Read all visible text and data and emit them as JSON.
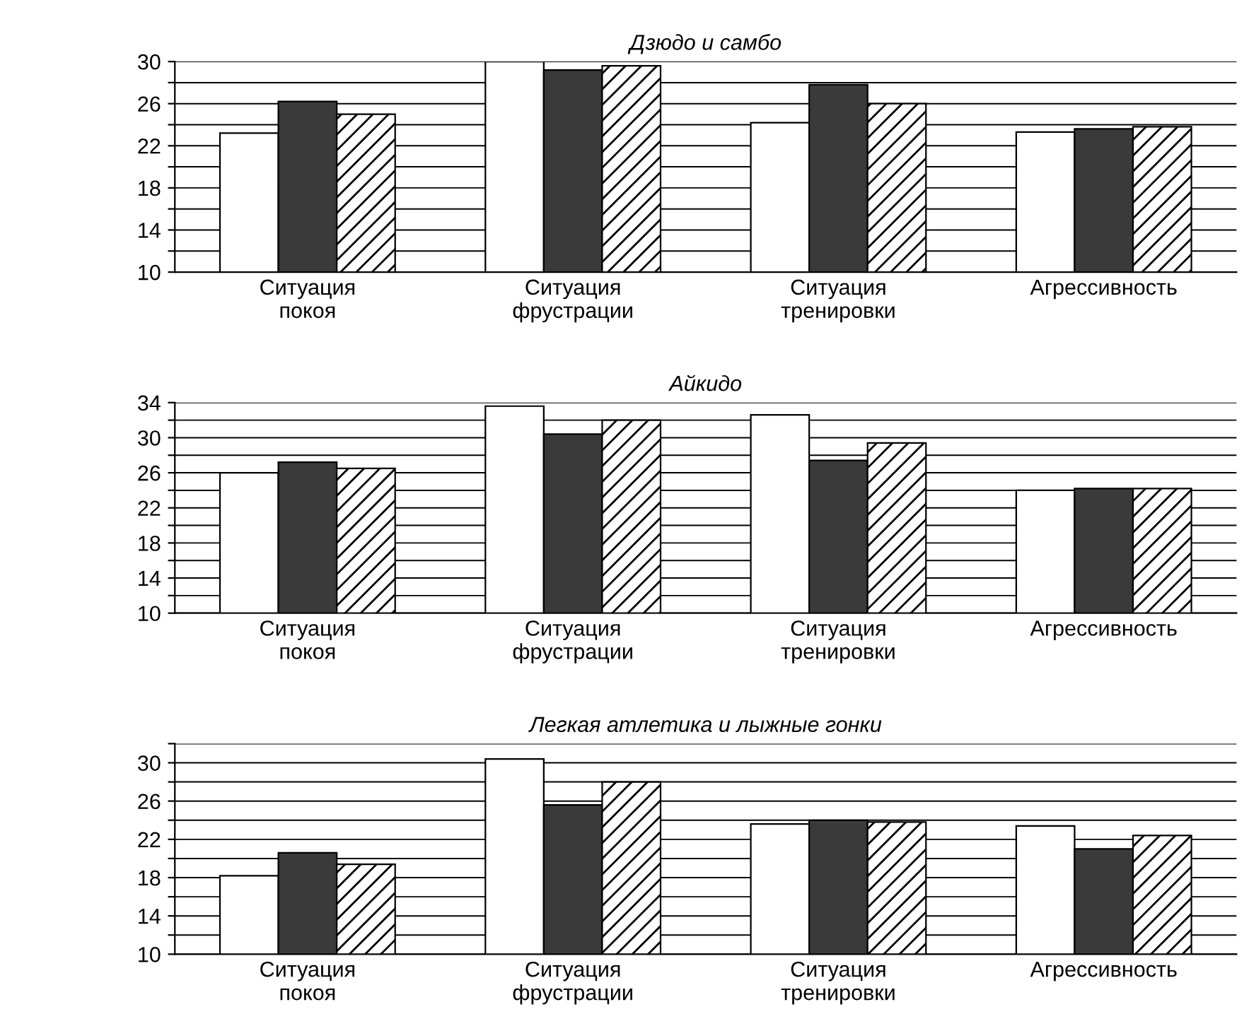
{
  "chart_data": [
    {
      "type": "bar",
      "title": "Дзюдо и самбо",
      "categories": [
        "Ситуация\nпокоя",
        "Ситуация\nфрустрации",
        "Ситуация\nтренировки",
        "Агрессивность"
      ],
      "series": [
        {
          "color": "#ffffff",
          "values": [
            23.2,
            30,
            24.2,
            23.3
          ]
        },
        {
          "color": "#3a3a3a",
          "values": [
            26.2,
            29.2,
            27.8,
            23.6
          ]
        },
        {
          "color": "#000000",
          "values": [
            25,
            29.6,
            26,
            23.8
          ]
        }
      ],
      "ylim": [
        10,
        30
      ],
      "yticks": [
        10,
        {
          "value": 12,
          "label": null
        },
        14,
        {
          "value": 16,
          "label": null
        },
        18,
        {
          "value": 20,
          "label": null
        },
        22,
        {
          "value": 24,
          "label": null
        },
        26,
        {
          "value": 28,
          "label": null
        },
        30
      ],
      "grid": "y",
      "legend": false
    },
    {
      "type": "bar",
      "title": "Айкидо",
      "categories": [
        "Ситуация\nпокоя",
        "Ситуация\nфрустрации",
        "Ситуация\nтренировки",
        "Агрессивность"
      ],
      "series": [
        {
          "color": "#ffffff",
          "values": [
            26,
            33.6,
            32.6,
            24
          ]
        },
        {
          "color": "#3a3a3a",
          "values": [
            27.2,
            30.4,
            27.4,
            24.2
          ]
        },
        {
          "color": "#000000",
          "values": [
            26.5,
            32,
            29.4,
            24.2
          ]
        }
      ],
      "ylim": [
        10,
        34
      ],
      "yticks": [
        10,
        {
          "value": 12,
          "label": null
        },
        14,
        {
          "value": 16,
          "label": null
        },
        18,
        {
          "value": 20,
          "label": null
        },
        22,
        {
          "value": 24,
          "label": null
        },
        26,
        {
          "value": 28,
          "label": null
        },
        30,
        {
          "value": 32,
          "label": null
        },
        34
      ],
      "grid": "y",
      "legend": false
    },
    {
      "type": "bar",
      "title": "Легкая атлетика и лыжные гонки",
      "categories": [
        "Ситуация\nпокоя",
        "Ситуация\nфрустрации",
        "Ситуация\nтренировки",
        "Агрессивность"
      ],
      "series": [
        {
          "color": "#ffffff",
          "values": [
            18.2,
            30.4,
            23.6,
            23.4
          ]
        },
        {
          "color": "#3a3a3a",
          "values": [
            20.6,
            25.6,
            24,
            21
          ]
        },
        {
          "color": "#000000",
          "values": [
            19.4,
            28,
            23.8,
            22.4
          ]
        }
      ],
      "ylim": [
        10,
        32
      ],
      "yticks": [
        10,
        {
          "value": 12,
          "label": null
        },
        14,
        {
          "value": 16,
          "label": null
        },
        18,
        {
          "value": 20,
          "label": null
        },
        22,
        {
          "value": 24,
          "label": null
        },
        26,
        {
          "value": 28,
          "label": null
        },
        30,
        {
          "value": 32,
          "label": null
        }
      ],
      "grid": "y",
      "legend": false
    }
  ]
}
